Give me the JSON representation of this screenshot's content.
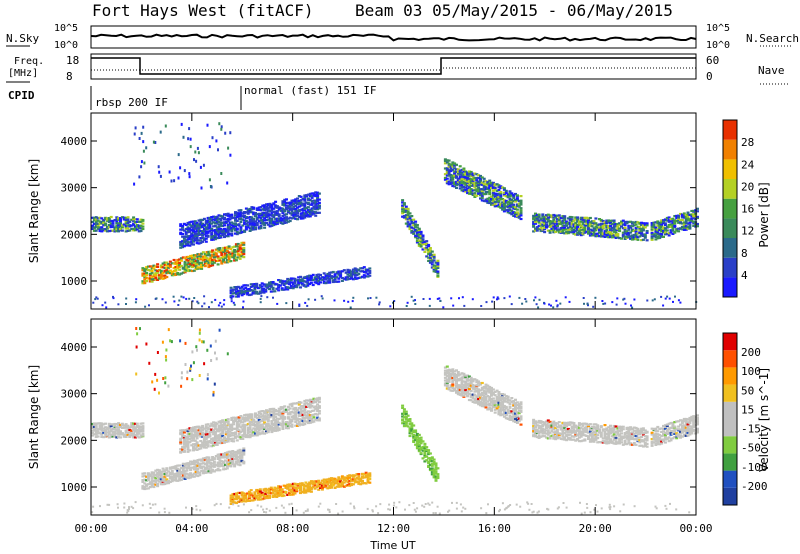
{
  "header": {
    "station": "Fort Hays West (fitACF)",
    "beam_info": "Beam 03 05/May/2015 - 06/May/2015"
  },
  "panels": {
    "nsky_label": "N.Sky",
    "nsky_ticks": [
      "10^5",
      "10^0"
    ],
    "nsearch_label": "N.Search",
    "nsearch_ticks": [
      "10^5",
      "10^0"
    ],
    "freq_label_1": "Freq.",
    "freq_label_2": "[MHz]",
    "freq_ticks": [
      "18",
      "8"
    ],
    "nave_label": "Nave",
    "nave_ticks": [
      "60",
      "0"
    ],
    "cpid_label": "CPID",
    "cpid_1": "rbsp 200 IF",
    "cpid_2": "normal (fast) 151 IF"
  },
  "colors": {
    "power": [
      "#1a1aff",
      "#2a3fc8",
      "#2b6a8a",
      "#3a8a5a",
      "#46a040",
      "#b4d024",
      "#f0c000",
      "#f08000",
      "#e83000"
    ],
    "velocity": [
      "#e00000",
      "#ff5000",
      "#ff9a00",
      "#f0c020",
      "#c0c0c0",
      "#c0c0c0",
      "#80cc40",
      "#40a040",
      "#2050c0",
      "#2040a0"
    ]
  },
  "chart_data": [
    {
      "type": "heatmap",
      "name": "power",
      "ylabel": "Slant Range [km]",
      "xlabel": "",
      "x_range": [
        0,
        24
      ],
      "ylim": [
        400,
        4600
      ],
      "yticks": [
        "1000",
        "2000",
        "3000",
        "4000"
      ],
      "xticks": [
        "00:00",
        "04:00",
        "08:00",
        "12:00",
        "16:00",
        "20:00",
        "00:00"
      ],
      "colorbar_label": "Power [dB]",
      "colorbar_ticks": [
        "4",
        "8",
        "12",
        "16",
        "20",
        "24",
        "28"
      ],
      "echo_regions": [
        {
          "t": [
            0,
            2
          ],
          "r_center": [
            2250,
            2250
          ],
          "width": 300,
          "class": "mixed"
        },
        {
          "t": [
            2,
            6
          ],
          "r_center": [
            1150,
            1700
          ],
          "width": 350,
          "class": "strong"
        },
        {
          "t": [
            3.5,
            9
          ],
          "r_center": [
            2000,
            2700
          ],
          "width": 500,
          "class": "weak"
        },
        {
          "t": [
            5.5,
            11
          ],
          "r_center": [
            800,
            1250
          ],
          "width": 250,
          "class": "weak"
        },
        {
          "t": [
            12.3,
            13.7
          ],
          "r_center": [
            2600,
            1300
          ],
          "width": 400,
          "class": "mixed"
        },
        {
          "t": [
            14,
            17
          ],
          "r_center": [
            3400,
            2600
          ],
          "width": 500,
          "class": "mixed"
        },
        {
          "t": [
            17.5,
            22
          ],
          "r_center": [
            2300,
            2100
          ],
          "width": 400,
          "class": "mixed"
        },
        {
          "t": [
            22.2,
            24
          ],
          "r_center": [
            2100,
            2400
          ],
          "width": 400,
          "class": "mixed"
        }
      ]
    },
    {
      "type": "heatmap",
      "name": "velocity",
      "ylabel": "Slant Range [km]",
      "xlabel": "Time UT",
      "x_range": [
        0,
        24
      ],
      "ylim": [
        400,
        4600
      ],
      "yticks": [
        "1000",
        "2000",
        "3000",
        "4000"
      ],
      "xticks": [
        "00:00",
        "04:00",
        "08:00",
        "12:00",
        "16:00",
        "20:00",
        "00:00"
      ],
      "colorbar_label": "Velocity [m s^-1]",
      "colorbar_ticks": [
        "200",
        "100",
        "50",
        "15",
        "-15",
        "-50",
        "-100",
        "-200"
      ],
      "echo_regions": [
        {
          "t": [
            0,
            2
          ],
          "r_center": [
            2250,
            2250
          ],
          "width": 300,
          "class": "gray"
        },
        {
          "t": [
            2,
            6
          ],
          "r_center": [
            1150,
            1700
          ],
          "width": 350,
          "class": "gray"
        },
        {
          "t": [
            3.5,
            9
          ],
          "r_center": [
            2000,
            2700
          ],
          "width": 500,
          "class": "gray"
        },
        {
          "t": [
            5.5,
            11
          ],
          "r_center": [
            800,
            1250
          ],
          "width": 250,
          "class": "orange"
        },
        {
          "t": [
            12.3,
            13.7
          ],
          "r_center": [
            2600,
            1300
          ],
          "width": 400,
          "class": "green"
        },
        {
          "t": [
            14,
            17
          ],
          "r_center": [
            3400,
            2600
          ],
          "width": 500,
          "class": "gray"
        },
        {
          "t": [
            17.5,
            22
          ],
          "r_center": [
            2300,
            2100
          ],
          "width": 400,
          "class": "gray"
        },
        {
          "t": [
            22.2,
            24
          ],
          "r_center": [
            2100,
            2400
          ],
          "width": 400,
          "class": "gray"
        }
      ]
    }
  ]
}
